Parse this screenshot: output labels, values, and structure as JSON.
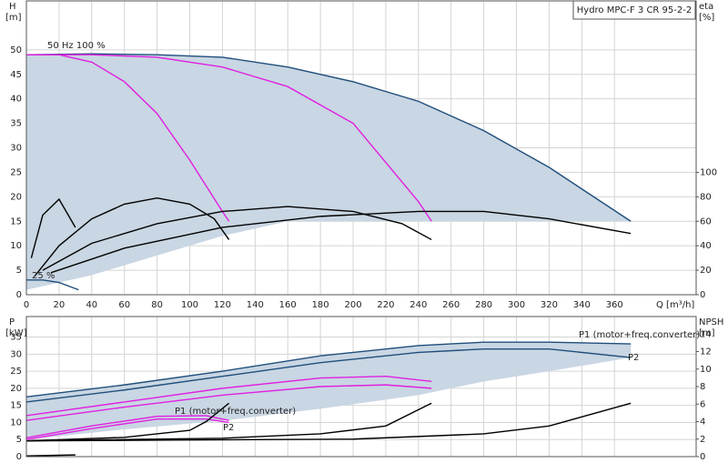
{
  "chart_data": [
    {
      "type": "line",
      "title": "Hydro MPC-F 3 CR 95-2-2",
      "x_label": "Q [m³/h]",
      "y_label": "H",
      "y_unit": "[m]",
      "y2_label": "eta",
      "y2_unit": "[%]",
      "xlim": [
        0,
        410
      ],
      "xticks": [
        0,
        20,
        40,
        60,
        80,
        100,
        120,
        140,
        160,
        180,
        200,
        220,
        240,
        260,
        280,
        300,
        320,
        340,
        360
      ],
      "ylim": [
        0,
        60
      ],
      "yticks": [
        0,
        5,
        10,
        15,
        20,
        25,
        30,
        35,
        40,
        45,
        50
      ],
      "y2lim": [
        0,
        240
      ],
      "y2ticks": [
        0,
        20,
        40,
        60,
        80,
        100
      ],
      "grid": true,
      "annotations": [
        "50 Hz 100 %",
        "25 %"
      ],
      "series": [
        {
          "color": "#c9d6e3",
          "fill": true,
          "x": [
            0,
            40,
            80,
            120,
            160,
            200,
            240,
            280,
            320,
            370
          ],
          "values": [
            49,
            49.2,
            49,
            48.5,
            46.5,
            43.5,
            39.5,
            33.5,
            26,
            15
          ],
          "base": [
            1,
            4,
            8,
            12,
            15,
            15,
            15,
            15,
            15,
            15
          ]
        },
        {
          "color": "#1f4e7a",
          "x": [
            0,
            40,
            80,
            120,
            160,
            200,
            240,
            280,
            320,
            370
          ],
          "values": [
            49,
            49.2,
            49,
            48.5,
            46.5,
            43.5,
            39.5,
            33.5,
            26,
            15
          ]
        },
        {
          "color": "#e020e0",
          "x": [
            0,
            20,
            40,
            60,
            80,
            100,
            120,
            124
          ],
          "values": [
            49,
            49,
            47.5,
            43.5,
            37,
            27.5,
            17,
            15
          ]
        },
        {
          "color": "#e020e0",
          "x": [
            0,
            40,
            80,
            120,
            160,
            200,
            240,
            248
          ],
          "values": [
            49,
            49,
            48.5,
            46.5,
            42.5,
            35,
            19,
            15
          ]
        },
        {
          "color": "#1f4e7a",
          "x": [
            0,
            10,
            20,
            32
          ],
          "values": [
            3,
            3,
            2.5,
            1
          ]
        },
        {
          "color": "#000000",
          "axis": "y2",
          "x": [
            3,
            10,
            20,
            30
          ],
          "values": [
            30,
            65,
            78,
            55
          ]
        },
        {
          "color": "#000000",
          "axis": "y2",
          "x": [
            5,
            20,
            40,
            60,
            80,
            100,
            115,
            124
          ],
          "values": [
            15,
            40,
            62,
            74,
            79,
            74,
            62,
            45
          ]
        },
        {
          "color": "#000000",
          "axis": "y2",
          "x": [
            10,
            40,
            80,
            120,
            160,
            200,
            230,
            248
          ],
          "values": [
            20,
            42,
            58,
            68,
            72,
            68,
            58,
            45
          ]
        },
        {
          "color": "#000000",
          "axis": "y2",
          "x": [
            15,
            60,
            120,
            180,
            240,
            280,
            320,
            370
          ],
          "values": [
            18,
            38,
            55,
            64,
            68,
            68,
            62,
            50
          ]
        }
      ]
    },
    {
      "type": "line",
      "y_label": "P",
      "y_unit": "[kW]",
      "y2_label": "NPSH",
      "y2_unit": "[m]",
      "xlim": [
        0,
        410
      ],
      "xticks": [
        0,
        20,
        40,
        60,
        80,
        100,
        120,
        140,
        160,
        180,
        200,
        220,
        240,
        260,
        280,
        300,
        320,
        340,
        360
      ],
      "ylim": [
        0,
        41
      ],
      "yticks": [
        0,
        5,
        10,
        15,
        20,
        25,
        30,
        35
      ],
      "y2lim": [
        0,
        16
      ],
      "y2ticks": [
        0,
        2,
        4,
        6,
        8,
        10,
        12,
        14
      ],
      "grid": true,
      "annotations": [
        "P1 (motor+freq.converter)",
        "P2",
        "P1 (motor+freq.converter)",
        "P2"
      ],
      "series": [
        {
          "color": "#c9d6e3",
          "fill": true,
          "x": [
            0,
            60,
            120,
            180,
            240,
            280,
            320,
            370
          ],
          "values": [
            17.5,
            21,
            25,
            29.5,
            32.5,
            33.5,
            33.5,
            33
          ],
          "base": [
            5,
            8,
            10.5,
            14,
            18,
            22,
            25,
            29
          ]
        },
        {
          "color": "#1f4e7a",
          "x": [
            0,
            60,
            120,
            180,
            240,
            280,
            320,
            370
          ],
          "values": [
            17.5,
            21,
            25,
            29.5,
            32.5,
            33.5,
            33.5,
            33
          ]
        },
        {
          "color": "#1f4e7a",
          "x": [
            0,
            60,
            120,
            180,
            240,
            280,
            320,
            370
          ],
          "values": [
            16,
            19.5,
            23.5,
            27.5,
            30.5,
            31.5,
            31.5,
            29
          ]
        },
        {
          "color": "#e020e0",
          "x": [
            0,
            60,
            120,
            180,
            220,
            248
          ],
          "values": [
            12,
            16,
            20,
            23,
            23.5,
            22
          ]
        },
        {
          "color": "#e020e0",
          "x": [
            0,
            60,
            120,
            180,
            220,
            248
          ],
          "values": [
            10.6,
            14.5,
            18,
            20.5,
            21,
            20
          ]
        },
        {
          "color": "#e020e0",
          "x": [
            0,
            40,
            80,
            110,
            124
          ],
          "values": [
            5.5,
            9,
            11.8,
            12,
            10.6
          ]
        },
        {
          "color": "#e020e0",
          "x": [
            0,
            40,
            80,
            110,
            124
          ],
          "values": [
            5,
            8.2,
            11,
            11,
            10
          ]
        },
        {
          "color": "#000000",
          "x": [
            0,
            30
          ],
          "values": [
            0.2,
            0.5
          ]
        },
        {
          "color": "#000000",
          "axis": "y2",
          "x": [
            0,
            60,
            100,
            110,
            124
          ],
          "values": [
            1.8,
            2.2,
            3,
            4,
            6.1
          ]
        },
        {
          "color": "#000000",
          "axis": "y2",
          "x": [
            0,
            120,
            180,
            220,
            248
          ],
          "values": [
            1.8,
            2.1,
            2.6,
            3.5,
            6.1
          ]
        },
        {
          "color": "#000000",
          "axis": "y2",
          "x": [
            0,
            200,
            280,
            320,
            370
          ],
          "values": [
            1.8,
            2,
            2.6,
            3.5,
            6.1
          ]
        }
      ]
    }
  ]
}
